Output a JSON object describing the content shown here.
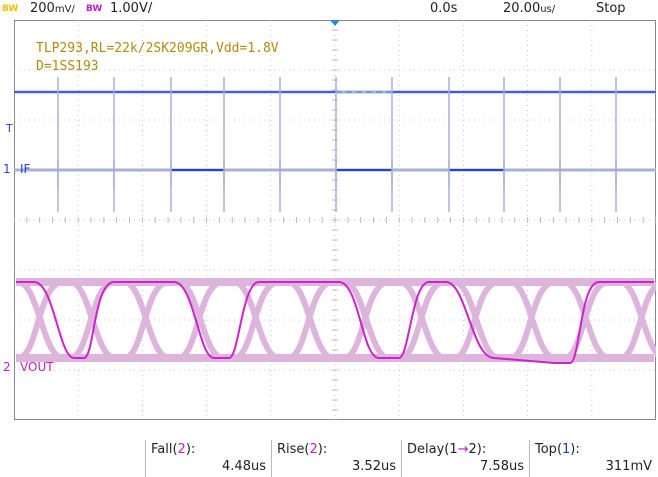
{
  "topbar": {
    "ch1_bw": "BW",
    "ch1_scale": "200",
    "ch1_unit": "mV/",
    "ch2_bw": "BW",
    "ch2_scale": "1.00V/",
    "trigger_pos": "0.0s",
    "timebase": "20.00",
    "timebase_unit": "us/",
    "run_state": "Stop"
  },
  "annotation": {
    "line1": "TLP293,RL=22k/2SK209GR,Vdd=1.8V",
    "line2": "D=1SS193"
  },
  "markers": {
    "trigger_level": "T",
    "ch1_marker": "1",
    "ch1_label": "IF",
    "ch2_marker": "2",
    "ch2_label": "VOUT"
  },
  "measurements": [
    {
      "label_pre": "Fall(",
      "label_ch": "2",
      "label_post": "):",
      "value": "4.48us"
    },
    {
      "label_pre": "Rise(",
      "label_ch": "2",
      "label_post": "):",
      "value": "3.52us"
    },
    {
      "label_pre": "Delay(1",
      "label_ch": "→",
      "label_post": "2):",
      "value": "7.58us"
    },
    {
      "label_pre": "Top(",
      "label_ch": "1",
      "label_post": "):",
      "value": "311mV"
    }
  ],
  "colors": {
    "ch1": "#2a3fd8",
    "ch1_persist": "#a8b0d8",
    "ch2": "#d020d0",
    "ch2_persist": "#dcb4dc",
    "annotation": "#b08a10",
    "grid": "#c8c8c8",
    "trigger": "#2a8ad8"
  }
}
